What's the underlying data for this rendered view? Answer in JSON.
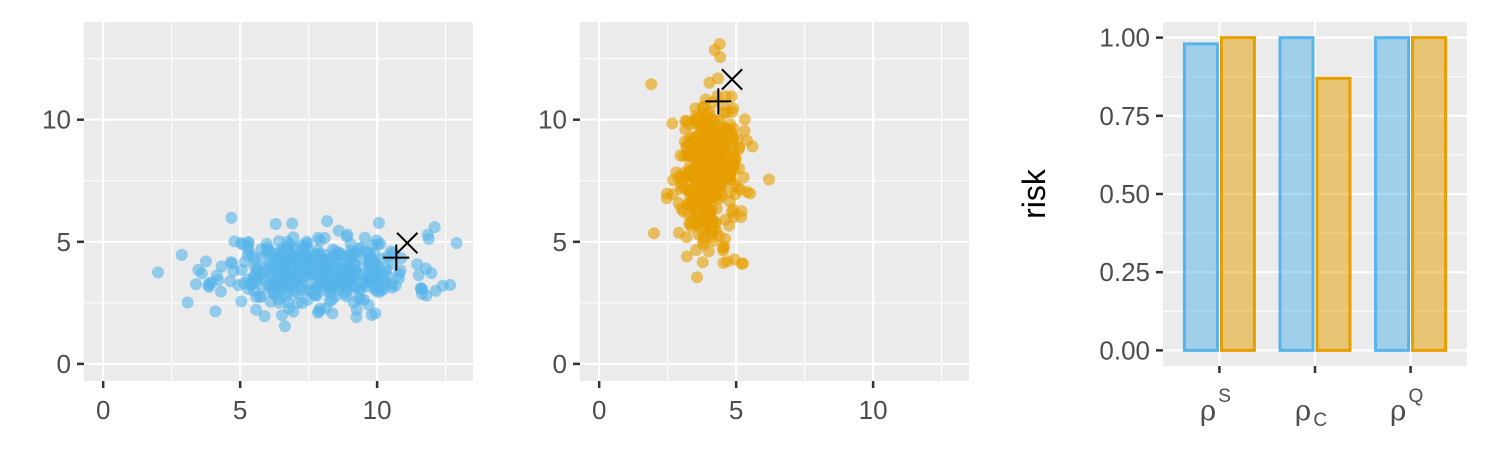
{
  "colors": {
    "series1": "#56B4E9",
    "series2": "#E69F00",
    "panel_bg": "#EBEBEB",
    "grid": "#FFFFFF",
    "tick_text": "#4D4D4D",
    "marker": "#000000"
  },
  "chart_data": [
    {
      "type": "scatter",
      "color": "#56B4E9",
      "xlim": [
        -0.7,
        13.5
      ],
      "ylim": [
        -0.7,
        14
      ],
      "x_ticks": [
        0,
        5,
        10
      ],
      "y_ticks": [
        0,
        5,
        10
      ],
      "x_tick_labels": [
        "0",
        "5",
        "10"
      ],
      "y_tick_labels": [
        "0",
        "5",
        "10"
      ],
      "grid": true,
      "cloud": {
        "n": 420,
        "x_mean": 7.8,
        "x_sd": 1.75,
        "y_mean": 3.8,
        "y_sd": 0.75,
        "seed": 11
      },
      "points": [
        {
          "x": 2.0,
          "y": 3.75
        },
        {
          "x": 3.6,
          "y": 3.7
        },
        {
          "x": 4.1,
          "y": 2.15
        },
        {
          "x": 12.1,
          "y": 5.6
        },
        {
          "x": 12.9,
          "y": 4.95
        },
        {
          "x": 12.4,
          "y": 3.2
        },
        {
          "x": 9.8,
          "y": 2.0
        },
        {
          "x": 6.9,
          "y": 5.75
        },
        {
          "x": 11.8,
          "y": 2.8
        }
      ],
      "markers": [
        {
          "symbol": "plus",
          "x": 10.7,
          "y": 4.35
        },
        {
          "symbol": "cross",
          "x": 11.1,
          "y": 4.95
        }
      ]
    },
    {
      "type": "scatter",
      "color": "#E69F00",
      "xlim": [
        -0.7,
        13.5
      ],
      "ylim": [
        -0.7,
        14
      ],
      "x_ticks": [
        0,
        5,
        10
      ],
      "y_ticks": [
        0,
        5,
        10
      ],
      "x_tick_labels": [
        "0",
        "5",
        "10"
      ],
      "y_tick_labels": [
        "0",
        "5",
        "10"
      ],
      "grid": true,
      "cloud": {
        "n": 420,
        "x_mean": 3.95,
        "x_sd": 0.55,
        "y_mean": 7.9,
        "y_sd": 1.45,
        "seed": 29
      },
      "points": [
        {
          "x": 4.4,
          "y": 13.1
        },
        {
          "x": 1.9,
          "y": 11.45
        },
        {
          "x": 6.2,
          "y": 7.55
        },
        {
          "x": 5.2,
          "y": 4.1
        },
        {
          "x": 3.2,
          "y": 4.4
        },
        {
          "x": 2.0,
          "y": 5.35
        },
        {
          "x": 4.0,
          "y": 4.6
        },
        {
          "x": 5.6,
          "y": 8.9
        }
      ],
      "markers": [
        {
          "symbol": "plus",
          "x": 4.35,
          "y": 10.75
        },
        {
          "symbol": "cross",
          "x": 4.85,
          "y": 11.65
        }
      ]
    },
    {
      "type": "bar",
      "ylabel": "risk",
      "ylim": [
        -0.05,
        1.05
      ],
      "y_ticks": [
        0,
        0.25,
        0.5,
        0.75,
        1
      ],
      "y_tick_labels": [
        "0.00",
        "0.25",
        "0.50",
        "0.75",
        "1.00"
      ],
      "categories": [
        {
          "base": "ρ",
          "script": "S",
          "position": "sup"
        },
        {
          "base": "ρ",
          "script": "C",
          "position": "sub"
        },
        {
          "base": "ρ",
          "script": "Q",
          "position": "sup"
        }
      ],
      "series": [
        {
          "color": "#56B4E9",
          "values": [
            0.98,
            1.0,
            1.0
          ]
        },
        {
          "color": "#E69F00",
          "values": [
            1.0,
            0.87,
            1.0
          ]
        }
      ],
      "grid": true
    }
  ]
}
